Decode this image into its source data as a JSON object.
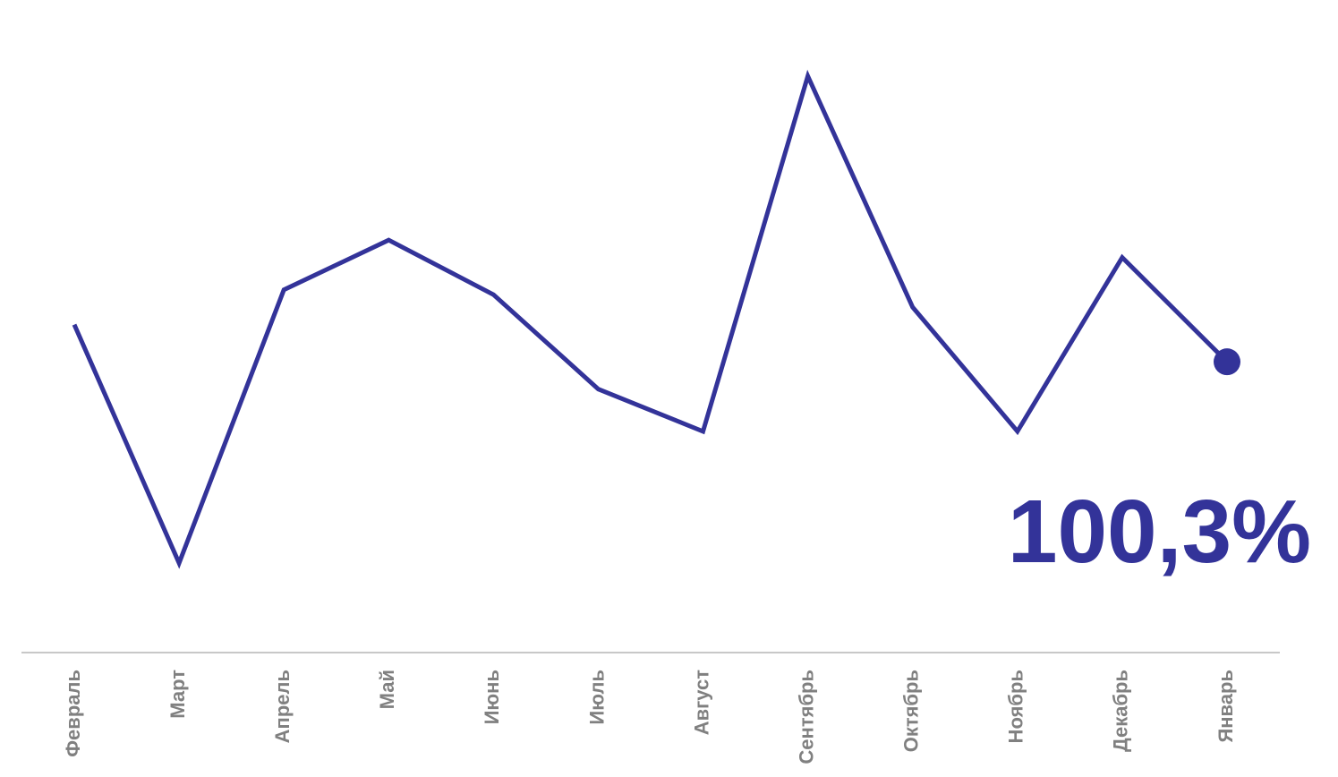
{
  "chart_data": {
    "type": "line",
    "categories": [
      "Февраль",
      "Март",
      "Апрель",
      "Май",
      "Июнь",
      "Июль",
      "Август",
      "Сентябрь",
      "Октябрь",
      "Ноябрь",
      "Декабрь",
      "Январь"
    ],
    "series": [
      {
        "values": [
          101.8,
          92.2,
          103.2,
          105.2,
          103.0,
          99.2,
          97.5,
          111.8,
          102.5,
          97.5,
          104.5,
          100.3
        ],
        "color": "#333399"
      }
    ],
    "last_value_label": "100,3%",
    "ylim": [
      90,
      113
    ],
    "grid": false,
    "axis_color": "#c8c8c8",
    "tick_color": "#808080"
  }
}
